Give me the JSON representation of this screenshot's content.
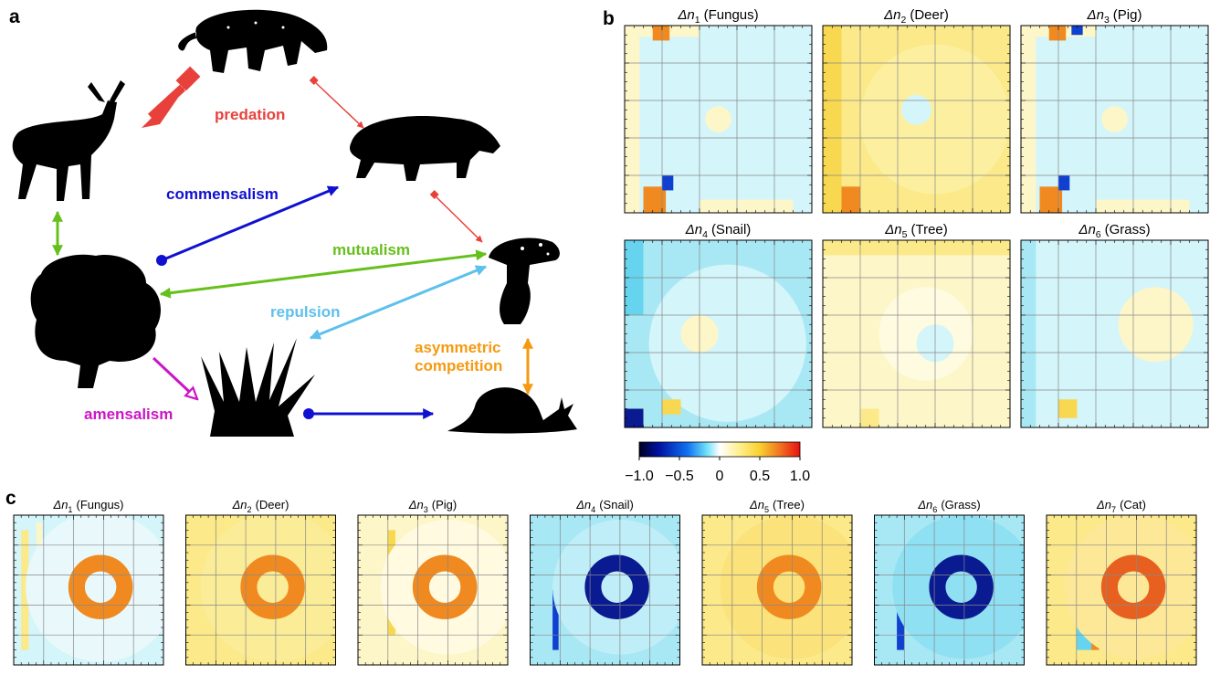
{
  "panel_labels": [
    "a",
    "b",
    "c"
  ],
  "diagram": {
    "labels": [
      "predation",
      "commensalism",
      "mutualism",
      "repulsion",
      "asymmetric",
      "competition",
      "amensalism"
    ]
  },
  "panel_b": {
    "maps": [
      {
        "symbol": "Δn",
        "index": "1",
        "name": "(Fungus)"
      },
      {
        "symbol": "Δn",
        "index": "2",
        "name": "(Deer)"
      },
      {
        "symbol": "Δn",
        "index": "3",
        "name": "(Pig)"
      },
      {
        "symbol": "Δn",
        "index": "4",
        "name": "(Snail)"
      },
      {
        "symbol": "Δn",
        "index": "5",
        "name": "(Tree)"
      },
      {
        "symbol": "Δn",
        "index": "6",
        "name": "(Grass)"
      }
    ],
    "colorbar": {
      "lim": [
        -1,
        1
      ],
      "ticks": [
        {
          "value": -1,
          "label": "−1.0"
        },
        {
          "value": -0.5,
          "label": "−0.5"
        },
        0,
        0.5,
        {
          "value": 1,
          "label": "1.0"
        }
      ]
    }
  },
  "panel_c": {
    "maps": [
      {
        "symbol": "Δn",
        "index": "1",
        "name": "(Fungus)"
      },
      {
        "symbol": "Δn",
        "index": "2",
        "name": "(Deer)"
      },
      {
        "symbol": "Δn",
        "index": "3",
        "name": "(Pig)"
      },
      {
        "symbol": "Δn",
        "index": "4",
        "name": "(Snail)"
      },
      {
        "symbol": "Δn",
        "index": "5",
        "name": "(Tree)"
      },
      {
        "symbol": "Δn",
        "index": "6",
        "name": "(Grass)"
      },
      {
        "symbol": "Δn",
        "index": "7",
        "name": "(Cat)"
      }
    ]
  }
}
